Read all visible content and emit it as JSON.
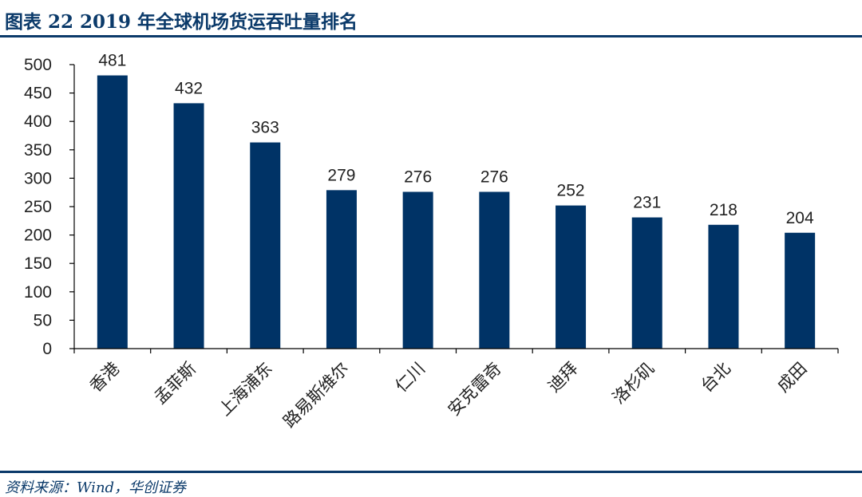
{
  "header": {
    "title": "图表 22 2019 年全球机场货运吞吐量排名"
  },
  "footer": {
    "source": "资料来源：Wind，华创证券"
  },
  "colors": {
    "bar": "#003366",
    "accent": "#0b3a6a",
    "axis": "#000000"
  },
  "chart_data": {
    "type": "bar",
    "categories": [
      "香港",
      "孟菲斯",
      "上海浦东",
      "路易斯维尔",
      "仁川",
      "安克雷奇",
      "迪拜",
      "洛杉矶",
      "台北",
      "成田"
    ],
    "values": [
      481,
      432,
      363,
      279,
      276,
      276,
      252,
      231,
      218,
      204
    ],
    "ylim": [
      0,
      500
    ],
    "yticks": [
      0,
      50,
      100,
      150,
      200,
      250,
      300,
      350,
      400,
      450,
      500
    ],
    "data_labels": true,
    "grid": false,
    "legend": "none"
  }
}
